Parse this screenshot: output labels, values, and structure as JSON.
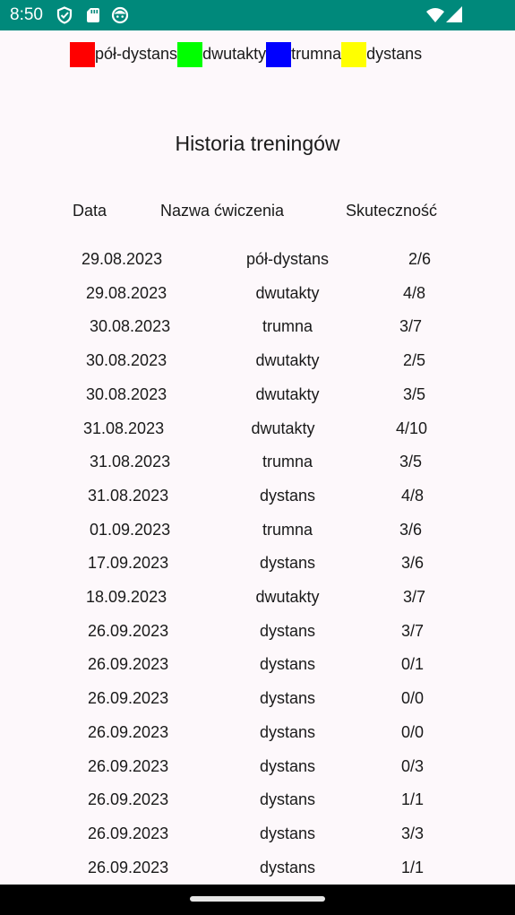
{
  "status_bar": {
    "time": "8:50",
    "icons": [
      "shield-icon",
      "sim-card-icon",
      "face-icon",
      "wifi-icon",
      "signal-icon"
    ],
    "color": "#00897b"
  },
  "legend": [
    {
      "label": "pół-dystans",
      "color": "#ff0000"
    },
    {
      "label": "dwutakty",
      "color": "#00ff00"
    },
    {
      "label": "trumna",
      "color": "#0000ff"
    },
    {
      "label": "dystans",
      "color": "#ffff00"
    }
  ],
  "title": "Historia treningów",
  "table": {
    "headers": [
      "Data",
      "Nazwa ćwiczenia",
      "Skuteczność"
    ],
    "rows": [
      [
        "29.08.2023",
        "pół-dystans",
        "2/6"
      ],
      [
        "29.08.2023",
        "dwutakty",
        "4/8"
      ],
      [
        "30.08.2023",
        "trumna",
        "3/7"
      ],
      [
        "30.08.2023",
        "dwutakty",
        "2/5"
      ],
      [
        "30.08.2023",
        "dwutakty",
        "3/5"
      ],
      [
        "31.08.2023",
        "dwutakty",
        "4/10"
      ],
      [
        "31.08.2023",
        "trumna",
        "3/5"
      ],
      [
        "31.08.2023",
        "dystans",
        "4/8"
      ],
      [
        "01.09.2023",
        "trumna",
        "3/6"
      ],
      [
        "17.09.2023",
        "dystans",
        "3/6"
      ],
      [
        "18.09.2023",
        "dwutakty",
        "3/7"
      ],
      [
        "26.09.2023",
        "dystans",
        "3/7"
      ],
      [
        "26.09.2023",
        "dystans",
        "0/1"
      ],
      [
        "26.09.2023",
        "dystans",
        "0/0"
      ],
      [
        "26.09.2023",
        "dystans",
        "0/0"
      ],
      [
        "26.09.2023",
        "dystans",
        "0/3"
      ],
      [
        "26.09.2023",
        "dystans",
        "1/1"
      ],
      [
        "26.09.2023",
        "dystans",
        "3/3"
      ],
      [
        "26.09.2023",
        "dystans",
        "1/1"
      ]
    ]
  }
}
